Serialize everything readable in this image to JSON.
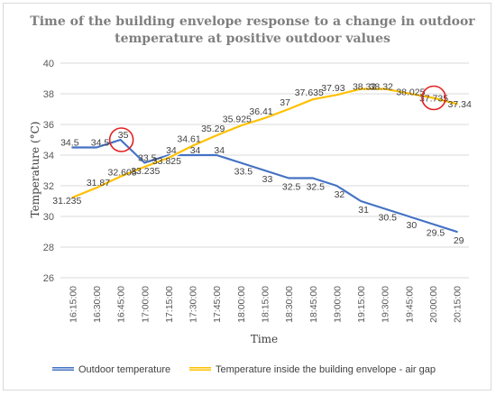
{
  "chart_data": {
    "type": "line",
    "title_line1": "Time of the building envelope response to a change in outdoor",
    "title_line2": "temperature at positive outdoor values",
    "xlabel": "Time",
    "ylabel": "Temperature (°C)",
    "ylim": [
      26,
      40
    ],
    "yticks": [
      "26",
      "28",
      "30",
      "32",
      "34",
      "36",
      "38",
      "40"
    ],
    "categories": [
      "16:15:00",
      "16:30:00",
      "16:45:00",
      "17:00:00",
      "17:15:00",
      "17:30:00",
      "17:45:00",
      "18:00:00",
      "18:15:00",
      "18:30:00",
      "18:45:00",
      "19:00:00",
      "19:15:00",
      "19:30:00",
      "19:45:00",
      "20:00:00",
      "20:15:00"
    ],
    "grid": true,
    "legend_position": "bottom",
    "series": [
      {
        "name": "Outdoor temperature",
        "color": "#4472c4",
        "values": [
          34.5,
          34.5,
          35,
          33.5,
          34,
          34,
          34,
          33.5,
          33,
          32.5,
          32.5,
          32,
          31,
          30.5,
          30,
          29.5,
          29
        ],
        "labels": [
          "34.5",
          "34.5",
          "35",
          "33.5",
          "34",
          "34",
          "34",
          "33.5",
          "33",
          "32.5",
          "32.5",
          "32",
          "31",
          "30.5",
          "30",
          "29.5",
          "29"
        ],
        "label_index": [
          0,
          1,
          2,
          3,
          4,
          5,
          6,
          7,
          8,
          9,
          10,
          11,
          12,
          13,
          14,
          15,
          16
        ]
      },
      {
        "name": "Temperature inside the building envelope - air gap",
        "color": "#ffc000",
        "values": [
          31.235,
          31.87,
          32.605,
          33.235,
          33.825,
          34.61,
          35.29,
          35.925,
          36.41,
          37,
          37.635,
          37.93,
          38.32,
          38.32,
          38.025,
          37.735,
          37.34
        ],
        "labels": [
          "31.235",
          "31.87",
          "32.605",
          "33.235",
          "33.825",
          "34.61",
          "35.29",
          "35.925",
          "36.41",
          "37",
          "37.635",
          "37.93",
          "38.32",
          "38.32",
          "38.025",
          "37.735",
          "37.34"
        ]
      }
    ],
    "highlights": [
      {
        "series": 0,
        "index": 2
      },
      {
        "series": 1,
        "index": 15
      }
    ],
    "highlight_color": "#e32222"
  }
}
